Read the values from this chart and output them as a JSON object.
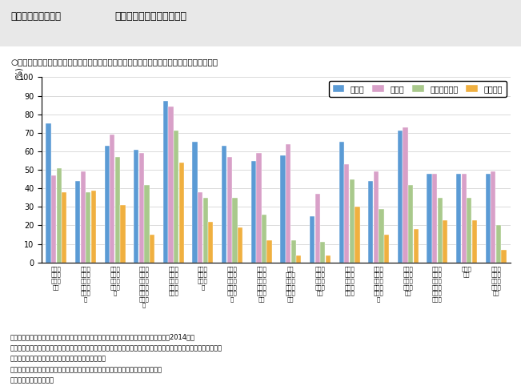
{
  "title": "第２－（３）－３図　　人材育成のための取組状況",
  "subtitle": "○　非正規雇用労働者は、正規雇用労働者と比較して、能力開発機会が乏しくなっている。",
  "ylabel": "(%)",
  "ylim": [
    0,
    100
  ],
  "yticks": [
    0,
    10,
    20,
    30,
    40,
    50,
    60,
    70,
    80,
    90,
    100
  ],
  "legend_labels": [
    "若年層",
    "中堅層",
    "多様な正社員",
    "非正社員"
  ],
  "categories": [
    "計画的・系統的なＯＪＴ",
    "計画化・系統化されていないＯＪＴ",
    "目標管理制度による動機づけ",
    "社内資格・技能評価制度等による動機づけ",
    "（個別評価・考課）定期的な面談",
    "指導役や教育保の配置",
    "人事異動（事業所内）同じ職種での",
    "（事業所内）異なる職種への配置転換",
    "転勤（事業所間の配転）（出向等）",
    "他企業との人材交流（出向等）",
    "企業内で行う選択型のＯｆｆ－ＪＴ",
    "企業内で行う選択型のＯｆｆ－ＪＴ",
    "企業が費用を負担する社外教育",
    "本人負担の社外教育に対する支援・配慮",
    "計画の立案",
    "人材ビジョンや人材育成方針・"
  ],
  "data": {
    "若年層": [
      75,
      44,
      63,
      61,
      87,
      65,
      63,
      55,
      58,
      25,
      65,
      44,
      71,
      48,
      48,
      48
    ],
    "中堅層": [
      47,
      49,
      69,
      59,
      84,
      38,
      57,
      59,
      64,
      37,
      53,
      49,
      73,
      48,
      48,
      49
    ],
    "多様な正社員": [
      51,
      38,
      57,
      42,
      71,
      35,
      35,
      26,
      12,
      11,
      45,
      29,
      42,
      35,
      35,
      20
    ],
    "非正社員": [
      38,
      39,
      31,
      15,
      54,
      22,
      19,
      12,
      4,
      4,
      30,
      15,
      18,
      23,
      23,
      7
    ]
  },
  "colors": [
    "#5b9bd5",
    "#d8a0c8",
    "#a9c98c",
    "#f0b040"
  ],
  "footnote1": "資料出所　（独）労働政策研究・研修機構「人材マネジメントのあり方に関する調査」（2014年）",
  "footnote2": "（注）　１）本調査による「多様な正社員」は、正社員としての標準的な働き方より所定労働時間が短い者や職種や勤\n　　　　　　務地等が限定されている正社員をいう。",
  "footnote3": "　　　　２）多様な正社員を雇用していて有効回答のあった企業に絞った集計結果。",
  "footnote4": "　　　　３）複数回答。"
}
